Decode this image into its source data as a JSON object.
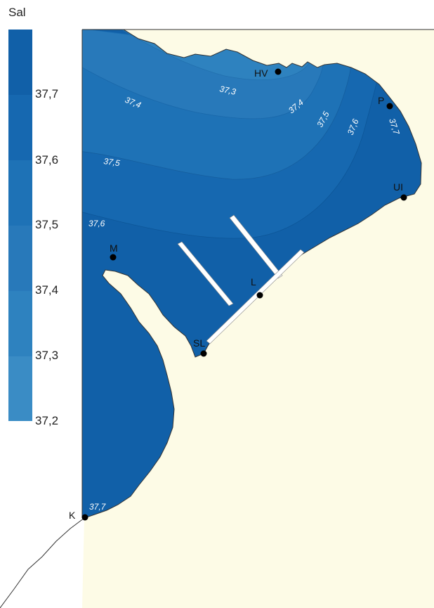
{
  "legend": {
    "title": "Sal",
    "ticks": [
      "37,7",
      "37,6",
      "37,5",
      "37,4",
      "37,3",
      "37,2"
    ],
    "colors": [
      "#1160a8",
      "#1668b0",
      "#1e72b6",
      "#2879ba",
      "#2e82bf",
      "#3a8cc5"
    ]
  },
  "colors": {
    "land": "#fdfbe6",
    "coastline": "#333333",
    "station": "#000000",
    "breakwater": "#ffffff"
  },
  "isoline_labels": [
    "37,3",
    "37,4",
    "37,4",
    "37,5",
    "37,5",
    "37,6",
    "37,6",
    "37,7",
    "37,7"
  ],
  "stations": [
    "HV",
    "P",
    "UI",
    "M",
    "L",
    "SL",
    "K"
  ]
}
